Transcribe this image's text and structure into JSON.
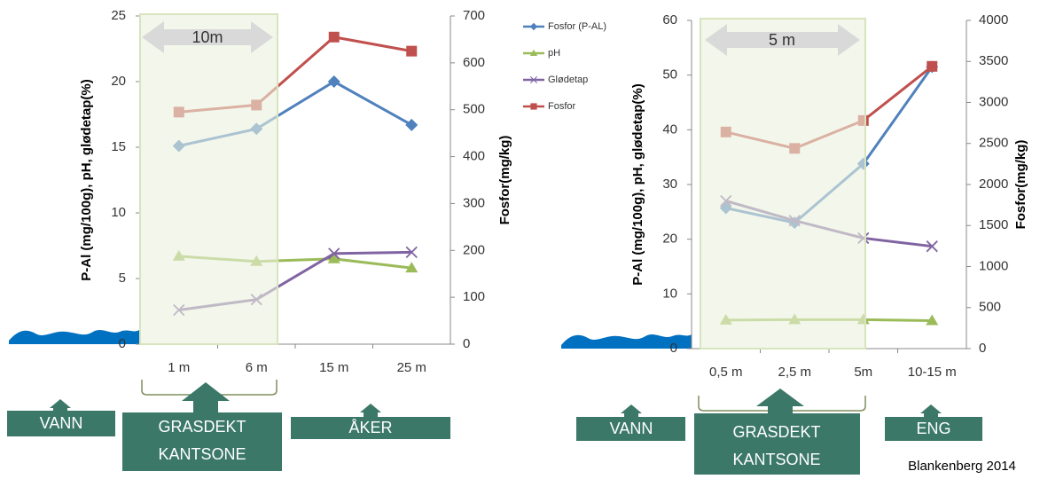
{
  "chart_data": [
    {
      "type": "line",
      "y_label": "P-Al (mg/100g), pH, glødetap(%)",
      "y2_label": "Fosfor(mg/kg)",
      "categories": [
        "1 m",
        "6 m",
        "15 m",
        "25 m"
      ],
      "ylim": [
        0,
        25
      ],
      "yticks": [
        0,
        5,
        10,
        15,
        20,
        25
      ],
      "y2lim": [
        0,
        700
      ],
      "y2ticks": [
        0,
        100,
        200,
        300,
        400,
        500,
        600,
        700
      ],
      "grid": false,
      "legend": "right",
      "arrow_label": "10m",
      "zones": [
        [
          "VANN"
        ],
        [
          "GRASDEKT",
          "KANTSONE"
        ],
        [
          "ÅKER"
        ]
      ],
      "series": [
        {
          "name": "Fosfor (P-AL)",
          "color": "#4f81bd",
          "marker": "diamond",
          "values": [
            15.1,
            16.4,
            20.0,
            16.7
          ]
        },
        {
          "name": "pH",
          "color": "#9bbb59",
          "marker": "triangle",
          "values": [
            6.7,
            6.3,
            6.5,
            5.8
          ]
        },
        {
          "name": "Glødetap",
          "color": "#8064a2",
          "marker": "x",
          "values": [
            2.6,
            3.4,
            6.9,
            7.0
          ]
        },
        {
          "name": "Fosfor",
          "color": "#c0504d",
          "marker": "square",
          "axis": "y2",
          "values": [
            495,
            510,
            655,
            625
          ]
        }
      ]
    },
    {
      "type": "line",
      "y_label": "P-Al (mg/100g), pH, glødetap(%)",
      "y2_label": "Fosfor(mg/kg)",
      "categories": [
        "0,5 m",
        "2,5 m",
        "5m",
        "10-15 m"
      ],
      "ylim": [
        0,
        60
      ],
      "yticks": [
        0,
        10,
        20,
        30,
        40,
        50,
        60
      ],
      "y2lim": [
        0,
        4000
      ],
      "y2ticks": [
        0,
        500,
        1000,
        1500,
        2000,
        2500,
        3000,
        3500,
        4000
      ],
      "grid": false,
      "arrow_label": "5 m",
      "zones": [
        [
          "VANN"
        ],
        [
          "GRASDEKT",
          "KANTSONE"
        ],
        [
          "ENG"
        ]
      ],
      "series": [
        {
          "color": "#4f81bd",
          "marker": "diamond",
          "values": [
            25.7,
            23.0,
            33.8,
            51.5
          ]
        },
        {
          "color": "#9bbb59",
          "marker": "triangle",
          "values": [
            5.2,
            5.3,
            5.3,
            5.1
          ]
        },
        {
          "color": "#8064a2",
          "marker": "x",
          "values": [
            27.0,
            23.4,
            20.2,
            18.7
          ]
        },
        {
          "color": "#c0504d",
          "marker": "square",
          "axis": "y2",
          "values": [
            2640,
            2440,
            2780,
            3440
          ]
        }
      ]
    }
  ],
  "source": "Blankenberg 2014"
}
